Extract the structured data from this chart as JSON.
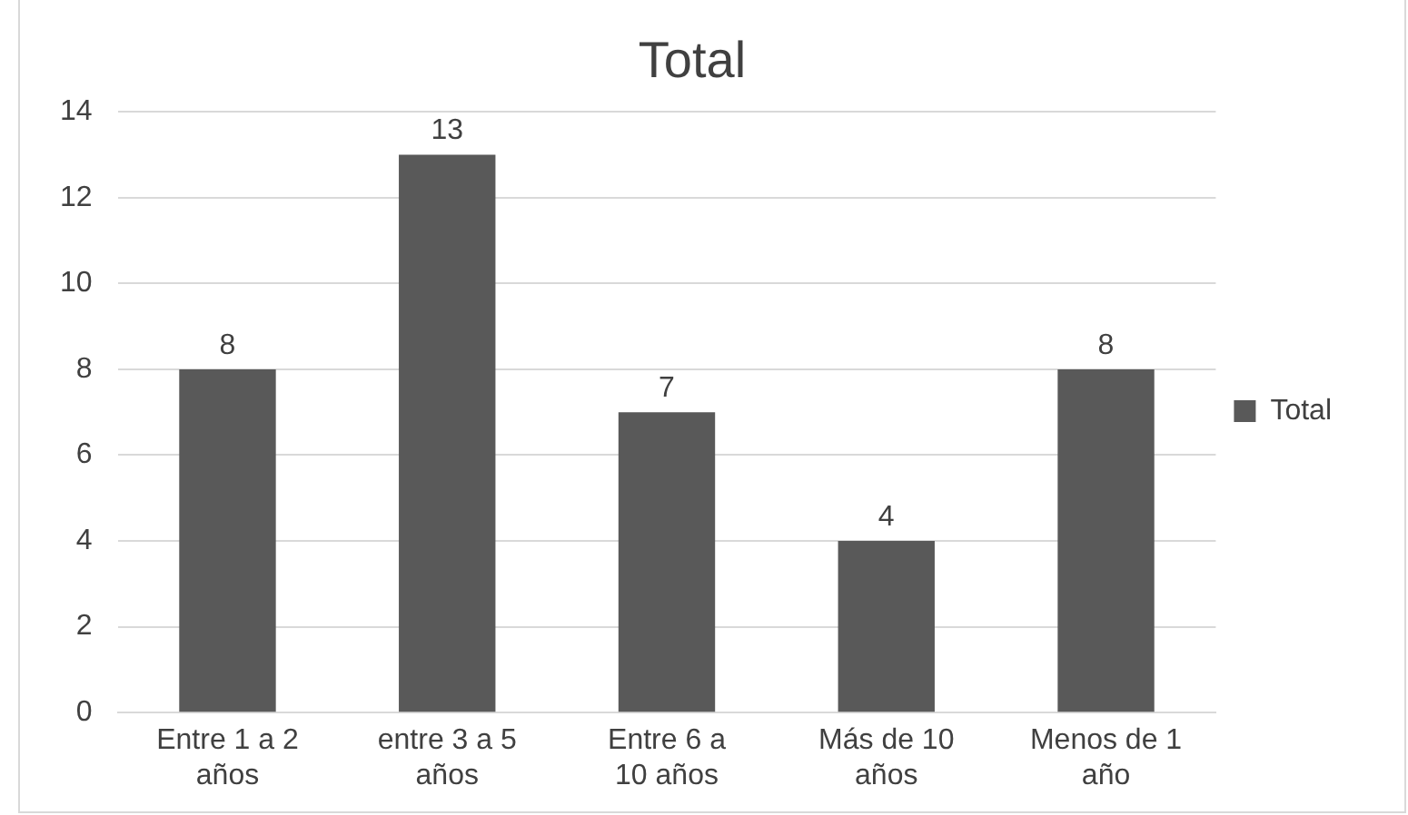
{
  "chart_data": {
    "type": "bar",
    "title": "Total",
    "categories": [
      "Entre 1 a 2 años",
      "entre 3 a 5 años",
      "Entre 6 a 10 años",
      "Más de 10 años",
      "Menos de 1 año"
    ],
    "series": [
      {
        "name": "Total",
        "color": "#595959",
        "values": [
          8,
          13,
          7,
          4,
          8
        ]
      }
    ],
    "ylim": [
      0,
      14
    ],
    "yticks": [
      0,
      2,
      4,
      6,
      8,
      10,
      12,
      14
    ],
    "grid": "y",
    "legend": "right",
    "data_labels": true
  }
}
